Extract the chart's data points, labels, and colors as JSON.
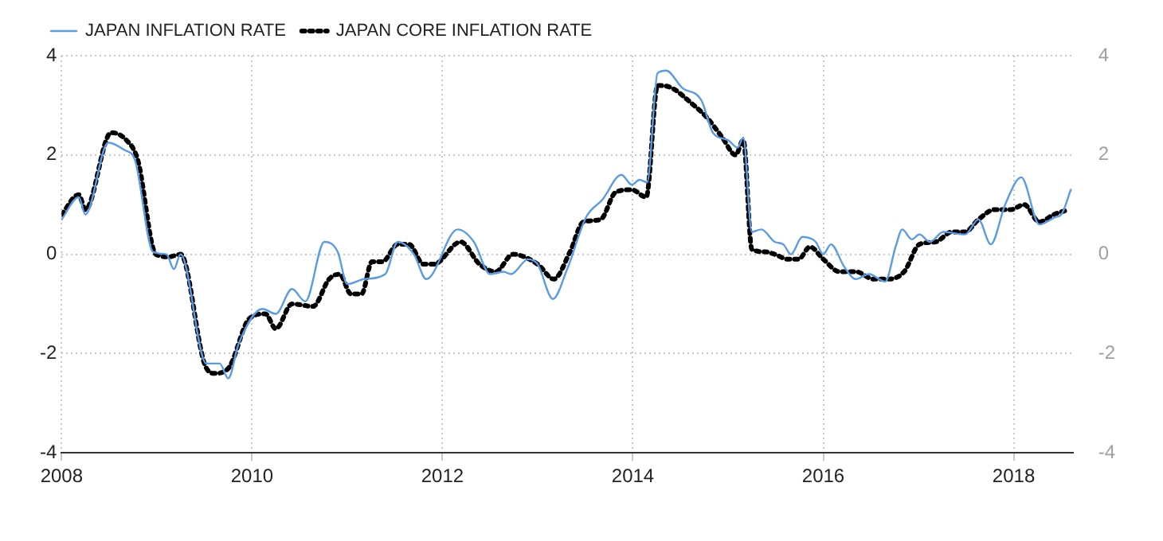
{
  "chart_data": {
    "type": "line",
    "legend": "top left",
    "grid": true,
    "marker": "none",
    "xlim": [
      2008,
      2018.62
    ],
    "xticks": [
      2008,
      2010,
      2012,
      2014,
      2016,
      2018
    ],
    "ylim": [
      -4,
      4
    ],
    "yticks": [
      -4,
      -2,
      0,
      2,
      4
    ],
    "y2lim": [
      -4,
      4
    ],
    "y2ticks": [
      -4,
      -2,
      0,
      2,
      4
    ],
    "series": [
      {
        "name": "JAPAN INFLATION RATE",
        "color": "#5a9be6",
        "line_style": "solid",
        "x": [
          2008.0,
          2008.18,
          2008.25,
          2008.49,
          2008.66,
          2008.77,
          2008.96,
          2009.1,
          2009.18,
          2009.25,
          2009.52,
          2009.66,
          2009.75,
          2009.86,
          2010.11,
          2010.25,
          2010.42,
          2010.56,
          2010.76,
          2010.9,
          2011.0,
          2011.18,
          2011.4,
          2011.53,
          2011.7,
          2011.83,
          2012.16,
          2012.33,
          2012.5,
          2012.64,
          2012.72,
          2012.9,
          2013.0,
          2013.16,
          2013.31,
          2013.51,
          2013.68,
          2013.88,
          2013.99,
          2014.07,
          2014.15,
          2014.26,
          2014.35,
          2014.52,
          2014.72,
          2014.84,
          2015.0,
          2015.1,
          2015.16,
          2015.25,
          2015.35,
          2015.49,
          2015.58,
          2015.66,
          2015.78,
          2015.92,
          2016.0,
          2016.08,
          2016.22,
          2016.34,
          2016.48,
          2016.65,
          2016.76,
          2016.83,
          2016.93,
          2017.01,
          2017.12,
          2017.26,
          2017.49,
          2017.63,
          2017.76,
          2017.91,
          2018.08,
          2018.27,
          2018.44,
          2018.5,
          2018.6
        ],
        "values": [
          0.7,
          1.15,
          0.8,
          2.25,
          2.1,
          1.9,
          0.05,
          0,
          -0.3,
          0,
          -2.2,
          -2.2,
          -2.5,
          -1.8,
          -1.1,
          -1.2,
          -0.7,
          -0.95,
          0.25,
          0.05,
          -0.6,
          -0.5,
          -0.4,
          0.25,
          0,
          -0.5,
          0.5,
          0.25,
          -0.4,
          -0.35,
          -0.4,
          -0.1,
          -0.2,
          -0.9,
          -0.3,
          0.75,
          1.1,
          1.6,
          1.4,
          1.5,
          1.45,
          3.65,
          3.7,
          3.35,
          3.1,
          2.45,
          2.3,
          2.15,
          2.35,
          0.45,
          0.5,
          0.25,
          0.2,
          0,
          0.35,
          0.25,
          0,
          0.2,
          -0.25,
          -0.5,
          -0.4,
          -0.55,
          0.15,
          0.5,
          0.3,
          0.4,
          0.25,
          0.45,
          0.4,
          0.7,
          0.2,
          1.0,
          1.55,
          0.6,
          0.75,
          0.8,
          1.3
        ]
      },
      {
        "name": "JAPAN CORE INFLATION RATE",
        "color": "#000000",
        "line_style": "dotted",
        "x": [
          2008.0,
          2008.18,
          2008.25,
          2008.52,
          2008.68,
          2008.8,
          2008.99,
          2009.13,
          2009.25,
          2009.5,
          2009.6,
          2009.75,
          2009.97,
          2010.14,
          2010.25,
          2010.42,
          2010.64,
          2010.81,
          2010.92,
          2011.04,
          2011.15,
          2011.26,
          2011.37,
          2011.53,
          2011.65,
          2011.8,
          2011.91,
          2012.19,
          2012.39,
          2012.56,
          2012.74,
          2013.0,
          2013.17,
          2013.34,
          2013.48,
          2013.66,
          2013.82,
          2013.99,
          2014.14,
          2014.26,
          2014.41,
          2014.61,
          2014.78,
          2014.94,
          2015.08,
          2015.16,
          2015.25,
          2015.39,
          2015.49,
          2015.63,
          2015.74,
          2015.86,
          2016.0,
          2016.17,
          2016.34,
          2016.53,
          2016.68,
          2016.85,
          2017.01,
          2017.18,
          2017.35,
          2017.49,
          2017.63,
          2017.8,
          2017.97,
          2018.11,
          2018.27,
          2018.42,
          2018.58
        ],
        "values": [
          0.8,
          1.2,
          0.9,
          2.45,
          2.3,
          1.9,
          0,
          -0.05,
          0,
          -2.2,
          -2.4,
          -2.3,
          -1.3,
          -1.2,
          -1.5,
          -1.0,
          -1.05,
          -0.5,
          -0.4,
          -0.8,
          -0.8,
          -0.15,
          -0.15,
          0.2,
          0.2,
          -0.2,
          -0.2,
          0.25,
          -0.2,
          -0.35,
          0,
          -0.2,
          -0.5,
          0.05,
          0.65,
          0.7,
          1.25,
          1.3,
          1.15,
          3.4,
          3.35,
          3.05,
          2.75,
          2.35,
          2.0,
          2.3,
          0.1,
          0.05,
          0,
          -0.1,
          -0.1,
          0.15,
          -0.1,
          -0.35,
          -0.35,
          -0.5,
          -0.5,
          -0.35,
          0.2,
          0.25,
          0.45,
          0.45,
          0.7,
          0.9,
          0.9,
          1.0,
          0.65,
          0.8,
          0.9
        ]
      }
    ]
  }
}
